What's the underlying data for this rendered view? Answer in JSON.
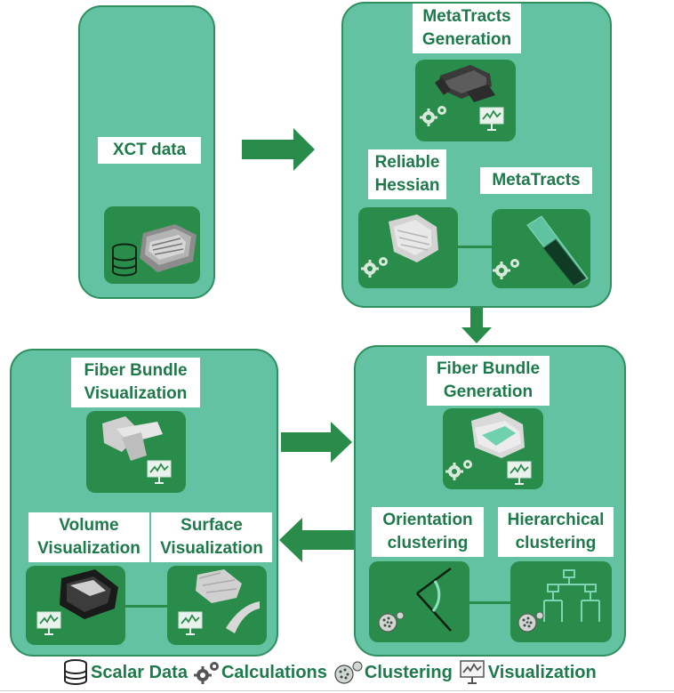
{
  "nodes": {
    "xct": {
      "label": "XCT data"
    },
    "metatracts_gen": {
      "label_line1": "MetaTracts",
      "label_line2": "Generation"
    },
    "reliable_hessian": {
      "label_line1": "Reliable",
      "label_line2": "Hessian"
    },
    "metatracts": {
      "label": "MetaTracts"
    },
    "fiber_bundle_gen": {
      "label_line1": "Fiber Bundle",
      "label_line2": "Generation"
    },
    "orientation": {
      "label_line1": "Orientation",
      "label_line2": "clustering"
    },
    "hierarchical": {
      "label_line1": "Hierarchical",
      "label_line2": "clustering"
    },
    "fiber_bundle_vis": {
      "label_line1": "Fiber Bundle",
      "label_line2": "Visualization"
    },
    "volume_vis": {
      "label_line1": "Volume",
      "label_line2": "Visualization"
    },
    "surface_vis": {
      "label_line1": "Surface",
      "label_line2": "Visualization"
    }
  },
  "legend": [
    {
      "icon": "database-icon",
      "label": "Scalar Data"
    },
    {
      "icon": "gears-icon",
      "label": "Calculations"
    },
    {
      "icon": "cluster-icon",
      "label": "Clustering"
    },
    {
      "icon": "visualization-icon",
      "label": "Visualization"
    }
  ],
  "colors": {
    "panel": "#62c2a2",
    "panel_border": "#2f8f5f",
    "tile": "#2a8c4a",
    "arrow": "#2a8c4a",
    "text": "#1e7a4a"
  }
}
